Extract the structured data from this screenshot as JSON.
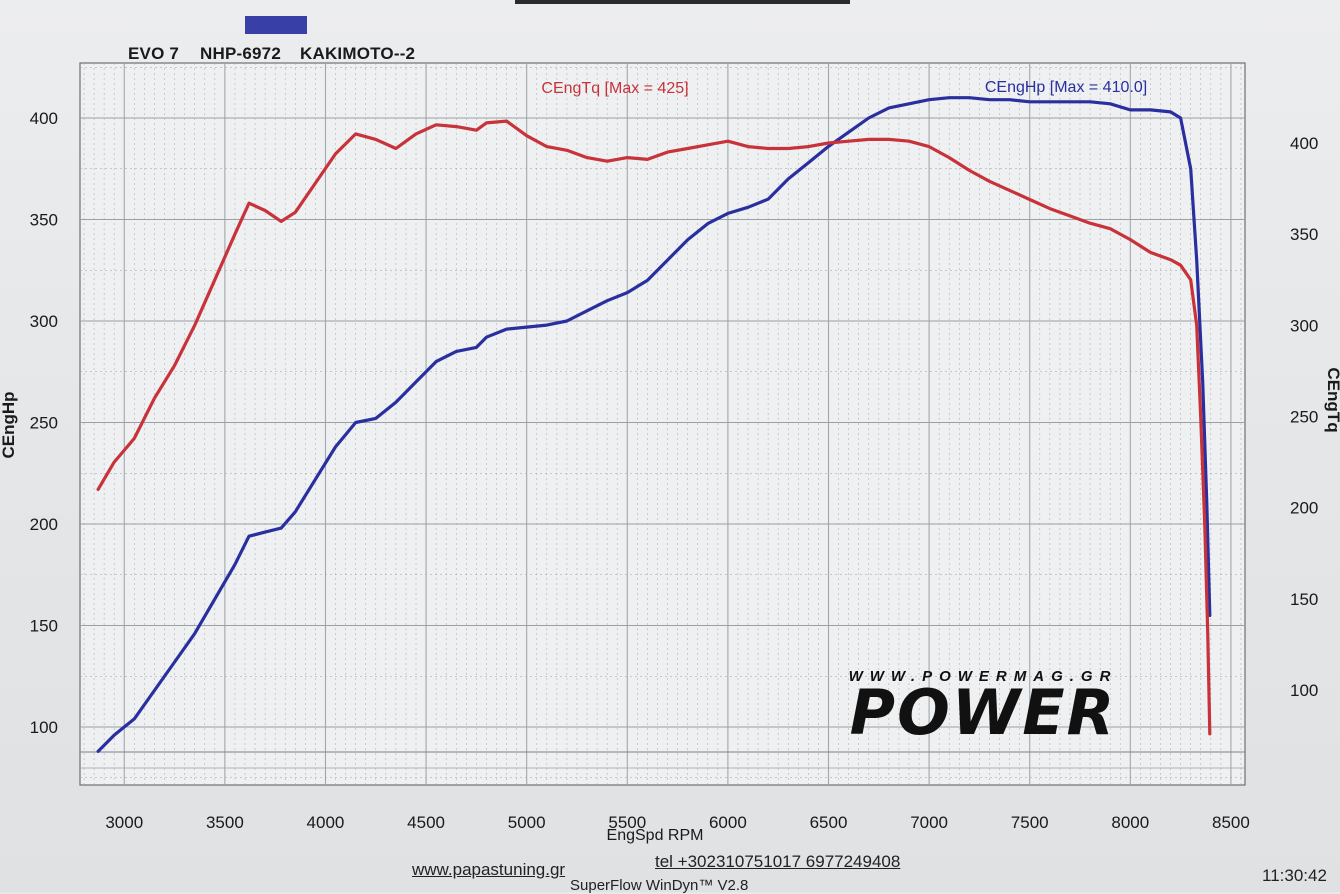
{
  "header": {
    "run_car": "EVO 7",
    "run_plate": "NHP-6972",
    "run_exhaust": "KAKIMOTO--2",
    "swatch_color": "#3840a8"
  },
  "footer": {
    "website": "www.papastuning.gr",
    "phone": "tel +302310751017  6977249408",
    "time": "11:30:42",
    "software": "SuperFlow WinDyn™ V2.8"
  },
  "watermark": {
    "url": "WWW.POWERMAG.GR",
    "logo": "POWER"
  },
  "chart_data": {
    "type": "line",
    "title": "",
    "xlabel": "EngSpd  RPM",
    "ylabel_left": "CEngHp",
    "ylabel_right": "CEngTq",
    "xlim": [
      2780,
      8570
    ],
    "x_ticks": [
      3000,
      3500,
      4000,
      4500,
      5000,
      5500,
      6000,
      6500,
      7000,
      7500,
      8000,
      8500
    ],
    "left_axis": {
      "ylim": [
        75,
        430
      ],
      "ticks": [
        100,
        150,
        200,
        250,
        300,
        350,
        400
      ]
    },
    "right_axis": {
      "ylim": [
        66,
        464
      ],
      "ticks": [
        100,
        150,
        200,
        250,
        300,
        350,
        400
      ]
    },
    "grid": true,
    "colors": {
      "hp": "#2a2fa0",
      "tq": "#c8323a",
      "grid": "#9aa0a6",
      "plot_bg": "#eef0f1"
    },
    "series": [
      {
        "name": "CEngHp [Max = 410.0]",
        "axis": "left",
        "color": "#2a2fa0",
        "x": [
          2870,
          2950,
          3050,
          3150,
          3250,
          3350,
          3450,
          3550,
          3620,
          3700,
          3780,
          3850,
          3950,
          4050,
          4150,
          4250,
          4350,
          4450,
          4550,
          4650,
          4750,
          4800,
          4900,
          5000,
          5100,
          5200,
          5300,
          5400,
          5500,
          5600,
          5700,
          5800,
          5900,
          6000,
          6100,
          6200,
          6300,
          6400,
          6500,
          6600,
          6700,
          6800,
          6900,
          7000,
          7100,
          7200,
          7300,
          7400,
          7500,
          7600,
          7700,
          7800,
          7900,
          8000,
          8100,
          8200,
          8250,
          8300,
          8330,
          8360,
          8380,
          8395
        ],
        "values": [
          88,
          96,
          104,
          118,
          132,
          146,
          163,
          180,
          194,
          196,
          198,
          206,
          222,
          238,
          250,
          252,
          260,
          270,
          280,
          285,
          287,
          292,
          296,
          297,
          298,
          300,
          305,
          310,
          314,
          320,
          330,
          340,
          348,
          353,
          356,
          360,
          370,
          378,
          386,
          393,
          400,
          405,
          407,
          409,
          410,
          410,
          409,
          409,
          408,
          408,
          408,
          408,
          407,
          404,
          404,
          403,
          400,
          375,
          330,
          270,
          210,
          155
        ]
      },
      {
        "name": "CEngTq [Max = 425]",
        "axis": "right",
        "color": "#c8323a",
        "x": [
          2870,
          2950,
          3050,
          3150,
          3250,
          3350,
          3450,
          3550,
          3620,
          3700,
          3780,
          3850,
          3950,
          4050,
          4150,
          4250,
          4350,
          4450,
          4550,
          4650,
          4750,
          4800,
          4900,
          5000,
          5100,
          5200,
          5300,
          5400,
          5500,
          5600,
          5700,
          5800,
          5900,
          6000,
          6100,
          6200,
          6300,
          6400,
          6500,
          6600,
          6700,
          6800,
          6900,
          7000,
          7100,
          7200,
          7300,
          7400,
          7500,
          7600,
          7700,
          7800,
          7900,
          8000,
          8100,
          8200,
          8250,
          8300,
          8330,
          8350,
          8370,
          8385,
          8395
        ],
        "values": [
          210,
          225,
          238,
          260,
          278,
          300,
          325,
          350,
          367,
          363,
          357,
          362,
          378,
          394,
          405,
          402,
          397,
          405,
          410,
          409,
          407,
          411,
          412,
          404,
          398,
          396,
          392,
          390,
          392,
          391,
          395,
          397,
          399,
          401,
          398,
          397,
          397,
          398,
          400,
          401,
          402,
          402,
          401,
          398,
          392,
          385,
          379,
          374,
          369,
          364,
          360,
          356,
          353,
          347,
          340,
          336,
          333,
          325,
          300,
          250,
          190,
          130,
          76
        ]
      }
    ],
    "annotations": [
      {
        "text": "CEngTq [Max = 425]",
        "series": "tq",
        "at_x": 4880
      },
      {
        "text": "CEngHp [Max = 410.0]",
        "series": "hp",
        "at_x": 7550
      }
    ]
  }
}
